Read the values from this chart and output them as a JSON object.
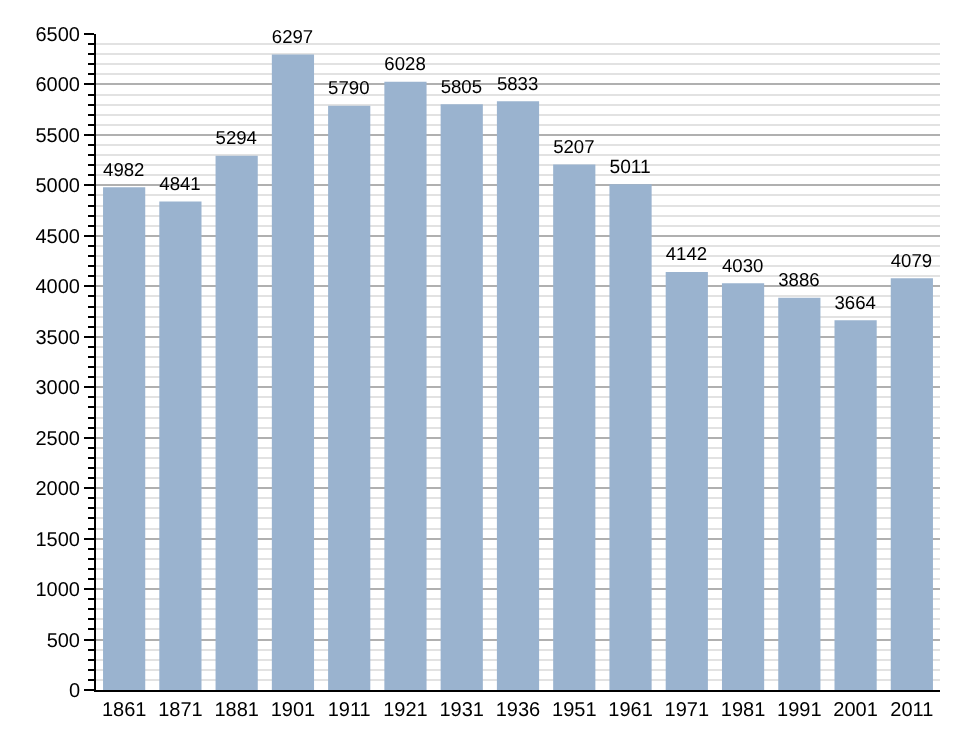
{
  "chart_data": {
    "type": "bar",
    "categories": [
      "1861",
      "1871",
      "1881",
      "1901",
      "1911",
      "1921",
      "1931",
      "1936",
      "1951",
      "1961",
      "1971",
      "1981",
      "1991",
      "2001",
      "2011"
    ],
    "values": [
      4982,
      4841,
      5294,
      6297,
      5790,
      6028,
      5805,
      5833,
      5207,
      5011,
      4142,
      4030,
      3886,
      3664,
      4079
    ],
    "color": "#9ab3cf",
    "ylim": [
      0,
      6500
    ],
    "yticks": [
      0,
      {
        "value": 100,
        "label": null
      },
      {
        "value": 200,
        "label": null
      },
      {
        "value": 300,
        "label": null
      },
      {
        "value": 400,
        "label": null
      },
      500,
      {
        "value": 600,
        "label": null
      },
      {
        "value": 700,
        "label": null
      },
      {
        "value": 800,
        "label": null
      },
      {
        "value": 900,
        "label": null
      },
      1000,
      {
        "value": 1100,
        "label": null
      },
      {
        "value": 1200,
        "label": null
      },
      {
        "value": 1300,
        "label": null
      },
      {
        "value": 1400,
        "label": null
      },
      1500,
      {
        "value": 1600,
        "label": null
      },
      {
        "value": 1700,
        "label": null
      },
      {
        "value": 1800,
        "label": null
      },
      {
        "value": 1900,
        "label": null
      },
      2000,
      {
        "value": 2100,
        "label": null
      },
      {
        "value": 2200,
        "label": null
      },
      {
        "value": 2300,
        "label": null
      },
      {
        "value": 2400,
        "label": null
      },
      2500,
      {
        "value": 2600,
        "label": null
      },
      {
        "value": 2700,
        "label": null
      },
      {
        "value": 2800,
        "label": null
      },
      {
        "value": 2900,
        "label": null
      },
      3000,
      {
        "value": 3100,
        "label": null
      },
      {
        "value": 3200,
        "label": null
      },
      {
        "value": 3300,
        "label": null
      },
      {
        "value": 3400,
        "label": null
      },
      3500,
      {
        "value": 3600,
        "label": null
      },
      {
        "value": 3700,
        "label": null
      },
      {
        "value": 3800,
        "label": null
      },
      {
        "value": 3900,
        "label": null
      },
      4000,
      {
        "value": 4100,
        "label": null
      },
      {
        "value": 4200,
        "label": null
      },
      {
        "value": 4300,
        "label": null
      },
      {
        "value": 4400,
        "label": null
      },
      4500,
      {
        "value": 4600,
        "label": null
      },
      {
        "value": 4700,
        "label": null
      },
      {
        "value": 4800,
        "label": null
      },
      {
        "value": 4900,
        "label": null
      },
      5000,
      {
        "value": 5100,
        "label": null
      },
      {
        "value": 5200,
        "label": null
      },
      {
        "value": 5300,
        "label": null
      },
      {
        "value": 5400,
        "label": null
      },
      5500,
      {
        "value": 5600,
        "label": null
      },
      {
        "value": 5700,
        "label": null
      },
      {
        "value": 5800,
        "label": null
      },
      {
        "value": 5900,
        "label": null
      },
      6000,
      {
        "value": 6100,
        "label": null
      },
      {
        "value": 6200,
        "label": null
      },
      {
        "value": 6300,
        "label": null
      },
      {
        "value": 6400,
        "label": null
      },
      6500
    ],
    "grid": "y",
    "data_labels": true
  }
}
